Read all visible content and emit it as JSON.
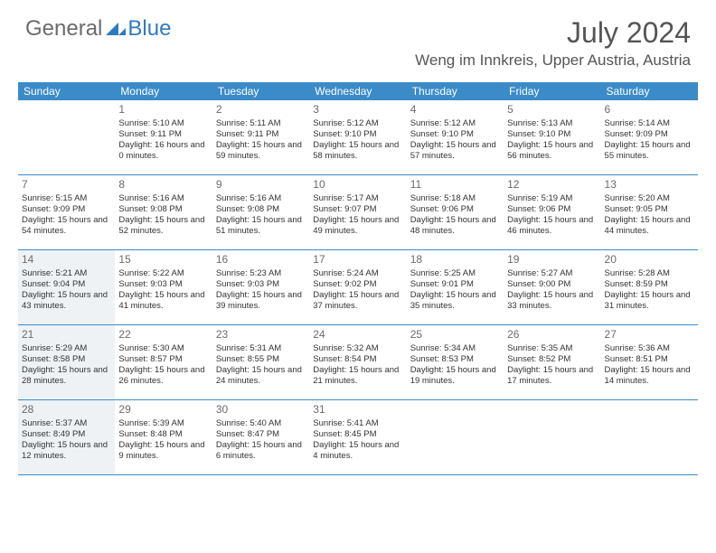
{
  "brand": {
    "part1": "General",
    "part2": "Blue"
  },
  "title": "July 2024",
  "location": "Weng im Innkreis, Upper Austria, Austria",
  "colors": {
    "header_bar": "#3b8bc8",
    "accent": "#2f7abf",
    "shade": "#eef2f5",
    "text": "#333333",
    "muted": "#6b6b6b",
    "bg": "#ffffff"
  },
  "daynames": [
    "Sunday",
    "Monday",
    "Tuesday",
    "Wednesday",
    "Thursday",
    "Friday",
    "Saturday"
  ],
  "weeks": [
    [
      {
        "n": "",
        "sr": "",
        "ss": "",
        "dl": ""
      },
      {
        "n": "1",
        "sr": "Sunrise: 5:10 AM",
        "ss": "Sunset: 9:11 PM",
        "dl": "Daylight: 16 hours and 0 minutes."
      },
      {
        "n": "2",
        "sr": "Sunrise: 5:11 AM",
        "ss": "Sunset: 9:11 PM",
        "dl": "Daylight: 15 hours and 59 minutes."
      },
      {
        "n": "3",
        "sr": "Sunrise: 5:12 AM",
        "ss": "Sunset: 9:10 PM",
        "dl": "Daylight: 15 hours and 58 minutes."
      },
      {
        "n": "4",
        "sr": "Sunrise: 5:12 AM",
        "ss": "Sunset: 9:10 PM",
        "dl": "Daylight: 15 hours and 57 minutes."
      },
      {
        "n": "5",
        "sr": "Sunrise: 5:13 AM",
        "ss": "Sunset: 9:10 PM",
        "dl": "Daylight: 15 hours and 56 minutes."
      },
      {
        "n": "6",
        "sr": "Sunrise: 5:14 AM",
        "ss": "Sunset: 9:09 PM",
        "dl": "Daylight: 15 hours and 55 minutes."
      }
    ],
    [
      {
        "n": "7",
        "sr": "Sunrise: 5:15 AM",
        "ss": "Sunset: 9:09 PM",
        "dl": "Daylight: 15 hours and 54 minutes."
      },
      {
        "n": "8",
        "sr": "Sunrise: 5:16 AM",
        "ss": "Sunset: 9:08 PM",
        "dl": "Daylight: 15 hours and 52 minutes."
      },
      {
        "n": "9",
        "sr": "Sunrise: 5:16 AM",
        "ss": "Sunset: 9:08 PM",
        "dl": "Daylight: 15 hours and 51 minutes."
      },
      {
        "n": "10",
        "sr": "Sunrise: 5:17 AM",
        "ss": "Sunset: 9:07 PM",
        "dl": "Daylight: 15 hours and 49 minutes."
      },
      {
        "n": "11",
        "sr": "Sunrise: 5:18 AM",
        "ss": "Sunset: 9:06 PM",
        "dl": "Daylight: 15 hours and 48 minutes."
      },
      {
        "n": "12",
        "sr": "Sunrise: 5:19 AM",
        "ss": "Sunset: 9:06 PM",
        "dl": "Daylight: 15 hours and 46 minutes."
      },
      {
        "n": "13",
        "sr": "Sunrise: 5:20 AM",
        "ss": "Sunset: 9:05 PM",
        "dl": "Daylight: 15 hours and 44 minutes."
      }
    ],
    [
      {
        "n": "14",
        "sr": "Sunrise: 5:21 AM",
        "ss": "Sunset: 9:04 PM",
        "dl": "Daylight: 15 hours and 43 minutes."
      },
      {
        "n": "15",
        "sr": "Sunrise: 5:22 AM",
        "ss": "Sunset: 9:03 PM",
        "dl": "Daylight: 15 hours and 41 minutes."
      },
      {
        "n": "16",
        "sr": "Sunrise: 5:23 AM",
        "ss": "Sunset: 9:03 PM",
        "dl": "Daylight: 15 hours and 39 minutes."
      },
      {
        "n": "17",
        "sr": "Sunrise: 5:24 AM",
        "ss": "Sunset: 9:02 PM",
        "dl": "Daylight: 15 hours and 37 minutes."
      },
      {
        "n": "18",
        "sr": "Sunrise: 5:25 AM",
        "ss": "Sunset: 9:01 PM",
        "dl": "Daylight: 15 hours and 35 minutes."
      },
      {
        "n": "19",
        "sr": "Sunrise: 5:27 AM",
        "ss": "Sunset: 9:00 PM",
        "dl": "Daylight: 15 hours and 33 minutes."
      },
      {
        "n": "20",
        "sr": "Sunrise: 5:28 AM",
        "ss": "Sunset: 8:59 PM",
        "dl": "Daylight: 15 hours and 31 minutes."
      }
    ],
    [
      {
        "n": "21",
        "sr": "Sunrise: 5:29 AM",
        "ss": "Sunset: 8:58 PM",
        "dl": "Daylight: 15 hours and 28 minutes."
      },
      {
        "n": "22",
        "sr": "Sunrise: 5:30 AM",
        "ss": "Sunset: 8:57 PM",
        "dl": "Daylight: 15 hours and 26 minutes."
      },
      {
        "n": "23",
        "sr": "Sunrise: 5:31 AM",
        "ss": "Sunset: 8:55 PM",
        "dl": "Daylight: 15 hours and 24 minutes."
      },
      {
        "n": "24",
        "sr": "Sunrise: 5:32 AM",
        "ss": "Sunset: 8:54 PM",
        "dl": "Daylight: 15 hours and 21 minutes."
      },
      {
        "n": "25",
        "sr": "Sunrise: 5:34 AM",
        "ss": "Sunset: 8:53 PM",
        "dl": "Daylight: 15 hours and 19 minutes."
      },
      {
        "n": "26",
        "sr": "Sunrise: 5:35 AM",
        "ss": "Sunset: 8:52 PM",
        "dl": "Daylight: 15 hours and 17 minutes."
      },
      {
        "n": "27",
        "sr": "Sunrise: 5:36 AM",
        "ss": "Sunset: 8:51 PM",
        "dl": "Daylight: 15 hours and 14 minutes."
      }
    ],
    [
      {
        "n": "28",
        "sr": "Sunrise: 5:37 AM",
        "ss": "Sunset: 8:49 PM",
        "dl": "Daylight: 15 hours and 12 minutes."
      },
      {
        "n": "29",
        "sr": "Sunrise: 5:39 AM",
        "ss": "Sunset: 8:48 PM",
        "dl": "Daylight: 15 hours and 9 minutes."
      },
      {
        "n": "30",
        "sr": "Sunrise: 5:40 AM",
        "ss": "Sunset: 8:47 PM",
        "dl": "Daylight: 15 hours and 6 minutes."
      },
      {
        "n": "31",
        "sr": "Sunrise: 5:41 AM",
        "ss": "Sunset: 8:45 PM",
        "dl": "Daylight: 15 hours and 4 minutes."
      },
      {
        "n": "",
        "sr": "",
        "ss": "",
        "dl": ""
      },
      {
        "n": "",
        "sr": "",
        "ss": "",
        "dl": ""
      },
      {
        "n": "",
        "sr": "",
        "ss": "",
        "dl": ""
      }
    ]
  ]
}
